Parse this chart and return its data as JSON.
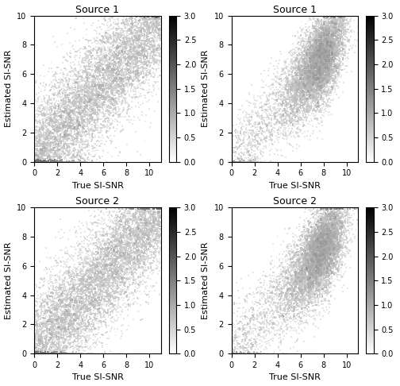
{
  "titles": [
    "Source 1",
    "Source 1",
    "Source 2",
    "Source 2"
  ],
  "xlabel": "True SI-SNR",
  "ylabel": "Estimated SI-SNR",
  "xlim": [
    0,
    11
  ],
  "ylim": [
    0,
    10
  ],
  "xticks": [
    0,
    2,
    4,
    6,
    8,
    10
  ],
  "yticks": [
    0,
    2,
    4,
    6,
    8,
    10
  ],
  "cmap": "gray_r",
  "vmin": 0.0,
  "vmax": 3.0,
  "colorbar_ticks_left": [
    0.0,
    0.5,
    1.0,
    1.5,
    2.0,
    2.5,
    3.0
  ],
  "colorbar_ticks_right": [
    0.0,
    0.5,
    1.0,
    1.5,
    2.0,
    2.5,
    3.0
  ],
  "figsize": [
    5.04,
    4.86
  ],
  "dpi": 100,
  "n_points": 8000,
  "bins": 80,
  "point_size": 2
}
